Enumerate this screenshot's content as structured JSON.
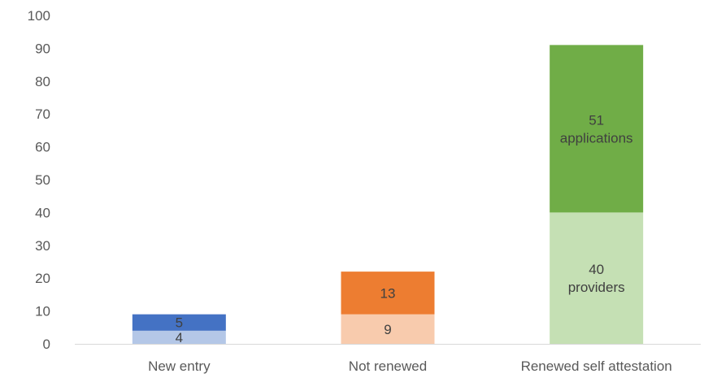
{
  "chart_data": {
    "type": "bar",
    "stacked": true,
    "categories": [
      "New entry",
      "Not renewed",
      "Renewed self attestation"
    ],
    "ylim": [
      0,
      100
    ],
    "yticks": [
      0,
      10,
      20,
      30,
      40,
      50,
      60,
      70,
      80,
      90,
      100
    ],
    "grid": false,
    "legend": "none",
    "segments": [
      {
        "category": "New entry",
        "value": 4,
        "color": "#b4c7e7",
        "label": [
          "4"
        ]
      },
      {
        "category": "New entry",
        "value": 5,
        "color": "#4472c4",
        "label": [
          "5"
        ]
      },
      {
        "category": "Not renewed",
        "value": 9,
        "color": "#f8cbad",
        "label": [
          "9"
        ]
      },
      {
        "category": "Not renewed",
        "value": 13,
        "color": "#ed7d31",
        "label": [
          "13"
        ]
      },
      {
        "category": "Renewed self attestation",
        "value": 40,
        "color": "#c5e0b4",
        "label": [
          "40",
          "providers"
        ]
      },
      {
        "category": "Renewed self attestation",
        "value": 51,
        "color": "#70ad47",
        "label": [
          "51",
          "applications"
        ]
      }
    ]
  }
}
